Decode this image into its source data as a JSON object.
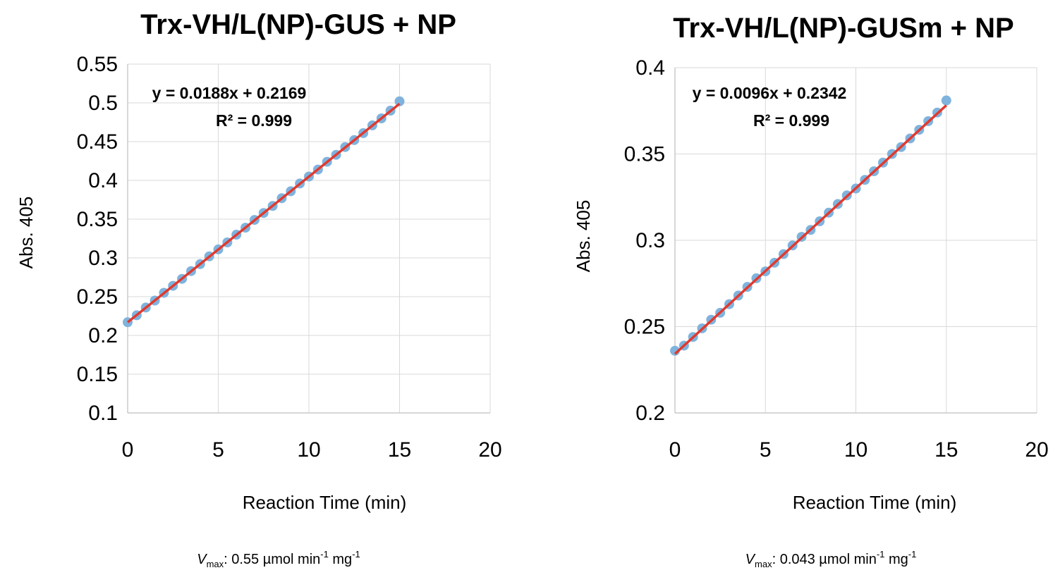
{
  "chart_data": [
    {
      "type": "scatter",
      "title": "Trx-VH/L(NP)-GUS + NP",
      "xlabel": "Reaction Time (min)",
      "ylabel": "Abs. 405",
      "xlim": [
        0,
        20
      ],
      "ylim": [
        0.1,
        0.55
      ],
      "xticks": [
        "0",
        "5",
        "10",
        "15",
        "20"
      ],
      "yticks": [
        "0.1",
        "0.15",
        "0.2",
        "0.25",
        "0.3",
        "0.35",
        "0.4",
        "0.45",
        "0.5",
        "0.55"
      ],
      "grid": true,
      "trendline": {
        "slope": 0.0188,
        "intercept": 0.2169,
        "x_range": [
          0,
          15
        ],
        "color": "#e03a2f"
      },
      "equation": "y = 0.0188x + 0.2169",
      "r2": "R² = 0.999",
      "marker_color": "#7fb3dd",
      "series": [
        {
          "x": [
            0,
            0.5,
            1,
            1.5,
            2,
            2.5,
            3,
            3.5,
            4,
            4.5,
            5,
            5.5,
            6,
            6.5,
            7,
            7.5,
            8,
            8.5,
            9,
            9.5,
            10,
            10.5,
            11,
            11.5,
            12,
            12.5,
            13,
            13.5,
            14,
            14.5,
            15
          ],
          "y": [
            0.217,
            0.226,
            0.236,
            0.245,
            0.255,
            0.264,
            0.273,
            0.283,
            0.292,
            0.302,
            0.311,
            0.32,
            0.33,
            0.339,
            0.349,
            0.358,
            0.367,
            0.377,
            0.386,
            0.396,
            0.405,
            0.414,
            0.424,
            0.433,
            0.443,
            0.452,
            0.461,
            0.471,
            0.48,
            0.49,
            0.502
          ]
        }
      ],
      "vmax": {
        "symbol": "V",
        "sub": "max",
        "text": ": 0.55 µmol min",
        "sup1": "-1",
        "text2": " mg",
        "sup2": "-1"
      }
    },
    {
      "type": "scatter",
      "title": "Trx-VH/L(NP)-GUSm + NP",
      "xlabel": "Reaction Time (min)",
      "ylabel": "Abs. 405",
      "xlim": [
        0,
        20
      ],
      "ylim": [
        0.2,
        0.4
      ],
      "xticks": [
        "0",
        "5",
        "10",
        "15",
        "20"
      ],
      "yticks": [
        "0.2",
        "0.25",
        "0.3",
        "0.35",
        "0.4"
      ],
      "grid": true,
      "trendline": {
        "slope": 0.0096,
        "intercept": 0.2342,
        "x_range": [
          0,
          15
        ],
        "color": "#e03a2f"
      },
      "equation": "y = 0.0096x + 0.2342",
      "r2": "R² = 0.999",
      "marker_color": "#7fb3dd",
      "series": [
        {
          "x": [
            0,
            0.5,
            1,
            1.5,
            2,
            2.5,
            3,
            3.5,
            4,
            4.5,
            5,
            5.5,
            6,
            6.5,
            7,
            7.5,
            8,
            8.5,
            9,
            9.5,
            10,
            10.5,
            11,
            11.5,
            12,
            12.5,
            13,
            13.5,
            14,
            14.5,
            15
          ],
          "y": [
            0.236,
            0.239,
            0.244,
            0.249,
            0.254,
            0.258,
            0.263,
            0.268,
            0.273,
            0.278,
            0.282,
            0.287,
            0.292,
            0.297,
            0.302,
            0.306,
            0.311,
            0.316,
            0.321,
            0.326,
            0.33,
            0.335,
            0.34,
            0.345,
            0.35,
            0.354,
            0.359,
            0.364,
            0.369,
            0.374,
            0.381
          ]
        }
      ],
      "vmax": {
        "symbol": "V",
        "sub": "max",
        "text": ": 0.043 µmol min",
        "sup1": "-1",
        "text2": " mg",
        "sup2": "-1"
      }
    }
  ]
}
